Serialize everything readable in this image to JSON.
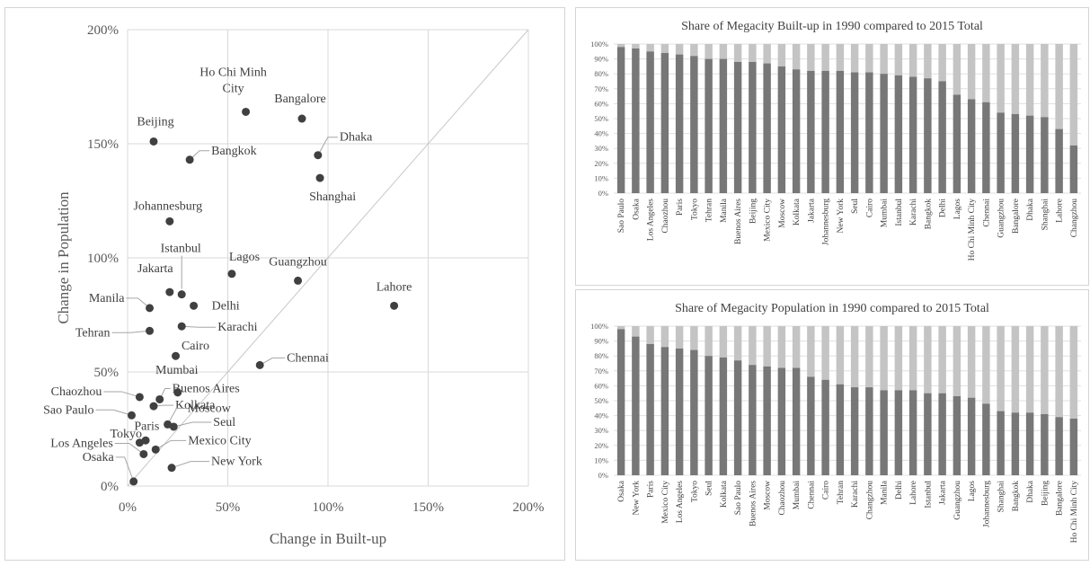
{
  "chart_data": [
    {
      "type": "scatter",
      "title": "",
      "xlabel": "Change in Built-up",
      "ylabel": "Change in Population",
      "xlim": [
        0,
        200
      ],
      "ylim": [
        0,
        200
      ],
      "x_ticks": [
        "0%",
        "50%",
        "100%",
        "150%",
        "200%"
      ],
      "y_ticks": [
        "0%",
        "50%",
        "100%",
        "150%",
        "200%"
      ],
      "grid": true,
      "reference_line": "diagonal y = x",
      "point_color": "#404040",
      "points": [
        {
          "label": "Ho Chi Minh City",
          "x": 59,
          "y": 164
        },
        {
          "label": "Bangalore",
          "x": 87,
          "y": 161
        },
        {
          "label": "Beijing",
          "x": 13,
          "y": 151
        },
        {
          "label": "Bangkok",
          "x": 31,
          "y": 143
        },
        {
          "label": "Dhaka",
          "x": 95,
          "y": 145
        },
        {
          "label": "Shanghai",
          "x": 96,
          "y": 135
        },
        {
          "label": "Johannesburg",
          "x": 21,
          "y": 116
        },
        {
          "label": "Lagos",
          "x": 52,
          "y": 93
        },
        {
          "label": "Guangzhou",
          "x": 85,
          "y": 90
        },
        {
          "label": "Istanbul",
          "x": 27,
          "y": 84
        },
        {
          "label": "Jakarta",
          "x": 21,
          "y": 85
        },
        {
          "label": "Delhi",
          "x": 33,
          "y": 79
        },
        {
          "label": "Lahore",
          "x": 133,
          "y": 79
        },
        {
          "label": "Manila",
          "x": 11,
          "y": 78
        },
        {
          "label": "Karachi",
          "x": 27,
          "y": 70
        },
        {
          "label": "Tehran",
          "x": 11,
          "y": 68
        },
        {
          "label": "Cairo",
          "x": 24,
          "y": 57
        },
        {
          "label": "Chennai",
          "x": 66,
          "y": 53
        },
        {
          "label": "Mumbai",
          "x": 25,
          "y": 41
        },
        {
          "label": "Chaozhou",
          "x": 6,
          "y": 39
        },
        {
          "label": "Buenos Aires",
          "x": 16,
          "y": 38
        },
        {
          "label": "Kolkata",
          "x": 13,
          "y": 35
        },
        {
          "label": "Sao Paulo",
          "x": 2,
          "y": 31
        },
        {
          "label": "Moscow",
          "x": 20,
          "y": 27
        },
        {
          "label": "Seul",
          "x": 23,
          "y": 26
        },
        {
          "label": "Tokyo",
          "x": 9,
          "y": 20
        },
        {
          "label": "Paris",
          "x": 6,
          "y": 19
        },
        {
          "label": "Los Angeles",
          "x": 8,
          "y": 14
        },
        {
          "label": "Mexico City",
          "x": 14,
          "y": 16
        },
        {
          "label": "New York",
          "x": 22,
          "y": 8
        },
        {
          "label": "Osaka",
          "x": 3,
          "y": 2
        }
      ]
    },
    {
      "type": "bar",
      "stacked": true,
      "title": "Share of Megacity Built-up in 1990 compared to 2015 Total",
      "ylim": [
        0,
        100
      ],
      "y_ticks": [
        "0%",
        "10%",
        "20%",
        "30%",
        "40%",
        "50%",
        "60%",
        "70%",
        "80%",
        "90%",
        "100%"
      ],
      "grid": true,
      "colors": {
        "share_1990": "#777777",
        "remainder": "#c4c4c4"
      },
      "categories": [
        "Sao Paulo",
        "Osaka",
        "Los Angeles",
        "Chaozhou",
        "Paris",
        "Tokyo",
        "Tehran",
        "Manila",
        "Buenos Aires",
        "Beijing",
        "Mexico City",
        "Moscow",
        "Kolkata",
        "Jakarta",
        "Johannesburg",
        "New York",
        "Seul",
        "Cairo",
        "Mumbai",
        "Istanbul",
        "Karachi",
        "Bangkok",
        "Delhi",
        "Lagos",
        "Ho Chi Minh City",
        "Chennai",
        "Guangzhou",
        "Bangalore",
        "Dhaka",
        "Shanghai",
        "Lahore",
        "Changzhou"
      ],
      "values": [
        98,
        97,
        95,
        94,
        93,
        92,
        90,
        90,
        88,
        88,
        87,
        85,
        83,
        82,
        82,
        82,
        81,
        81,
        80,
        79,
        78,
        77,
        75,
        66,
        63,
        61,
        54,
        53,
        52,
        51,
        43,
        32
      ]
    },
    {
      "type": "bar",
      "stacked": true,
      "title": "Share of Megacity Population in 1990 compared to 2015 Total",
      "ylim": [
        0,
        100
      ],
      "y_ticks": [
        "0%",
        "10%",
        "20%",
        "30%",
        "40%",
        "50%",
        "60%",
        "70%",
        "80%",
        "90%",
        "100%"
      ],
      "grid": true,
      "colors": {
        "share_1990": "#777777",
        "remainder": "#c4c4c4"
      },
      "categories": [
        "Osaka",
        "New York",
        "Paris",
        "Mexico City",
        "Los Angeles",
        "Tokyo",
        "Seul",
        "Kolkata",
        "Sao Paulo",
        "Buenos Aires",
        "Moscow",
        "Chaozhou",
        "Mumbai",
        "Chennai",
        "Cairo",
        "Tehran",
        "Karachi",
        "Changzhou",
        "Manila",
        "Delhi",
        "Lahore",
        "Istanbul",
        "Jakarta",
        "Guangzhou",
        "Lagos",
        "Johannesburg",
        "Shanghai",
        "Bangkok",
        "Dhaka",
        "Beijing",
        "Bangalore",
        "Ho Chi Minh City"
      ],
      "values": [
        98,
        93,
        88,
        86,
        85,
        84,
        80,
        79,
        77,
        74,
        73,
        72,
        72,
        66,
        64,
        61,
        59,
        59,
        57,
        57,
        57,
        55,
        55,
        53,
        52,
        48,
        43,
        42,
        42,
        41,
        39,
        38
      ]
    }
  ]
}
